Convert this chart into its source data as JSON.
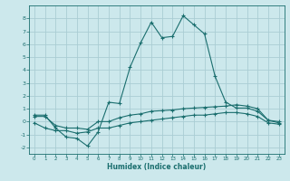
{
  "xlabel": "Humidex (Indice chaleur)",
  "background_color": "#cce8ec",
  "grid_color": "#aacdd4",
  "line_color": "#1a6e6e",
  "x": [
    0,
    1,
    2,
    3,
    4,
    5,
    6,
    7,
    8,
    9,
    10,
    11,
    12,
    13,
    14,
    15,
    16,
    17,
    18,
    19,
    20,
    21,
    22,
    23
  ],
  "line1": [
    0.5,
    0.5,
    -0.5,
    -1.2,
    -1.3,
    -1.9,
    -0.8,
    1.5,
    1.4,
    4.2,
    6.1,
    7.7,
    6.5,
    6.6,
    8.2,
    7.5,
    6.8,
    3.5,
    1.5,
    1.05,
    1.05,
    0.8,
    0.1,
    -0.1
  ],
  "line2": [
    0.4,
    0.4,
    -0.3,
    -0.5,
    -0.5,
    -0.6,
    0.0,
    0.0,
    0.3,
    0.5,
    0.6,
    0.8,
    0.85,
    0.9,
    1.0,
    1.05,
    1.1,
    1.15,
    1.2,
    1.3,
    1.2,
    1.0,
    0.1,
    0.0
  ],
  "line3": [
    -0.1,
    -0.5,
    -0.7,
    -0.7,
    -0.9,
    -0.8,
    -0.5,
    -0.5,
    -0.3,
    -0.1,
    0.0,
    0.1,
    0.2,
    0.3,
    0.4,
    0.5,
    0.5,
    0.6,
    0.7,
    0.7,
    0.6,
    0.4,
    -0.1,
    -0.2
  ],
  "ylim": [
    -2.5,
    9.0
  ],
  "xlim": [
    -0.5,
    23.5
  ],
  "yticks": [
    -2,
    -1,
    0,
    1,
    2,
    3,
    4,
    5,
    6,
    7,
    8
  ],
  "xticks": [
    0,
    1,
    2,
    3,
    4,
    5,
    6,
    7,
    8,
    9,
    10,
    11,
    12,
    13,
    14,
    15,
    16,
    17,
    18,
    19,
    20,
    21,
    22,
    23
  ]
}
